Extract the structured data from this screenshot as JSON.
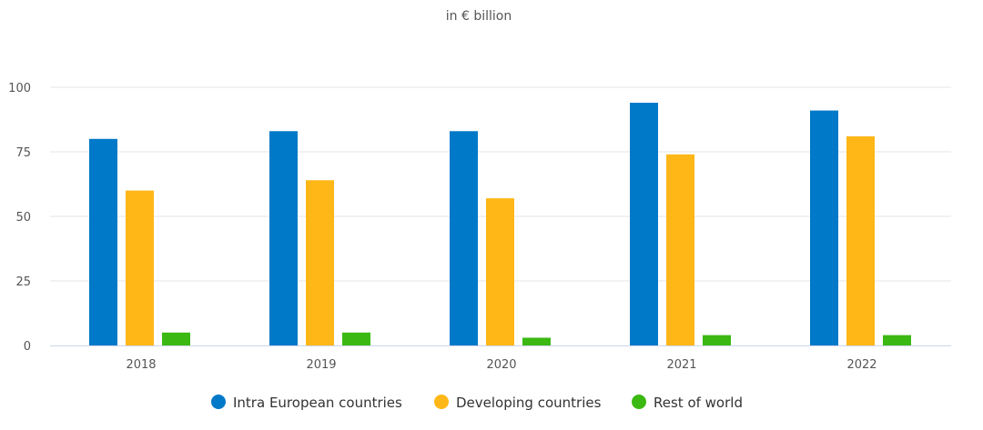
{
  "chart_data": {
    "type": "bar",
    "subtitle": "in € billion",
    "categories": [
      "2018",
      "2019",
      "2020",
      "2021",
      "2022"
    ],
    "series": [
      {
        "name": "Intra European countries",
        "color": "#0079c8",
        "values": [
          80,
          83,
          83,
          94,
          91
        ]
      },
      {
        "name": "Developing countries",
        "color": "#ffb718",
        "values": [
          60,
          64,
          57,
          74,
          81
        ]
      },
      {
        "name": "Rest of world",
        "color": "#3bb912",
        "values": [
          5,
          5,
          3,
          4,
          4
        ]
      }
    ],
    "ylim": [
      0,
      100
    ],
    "yticks": [
      0,
      25,
      50,
      75,
      100
    ],
    "grid": true,
    "legend": "bottom-center",
    "xlabel": "",
    "ylabel": ""
  }
}
